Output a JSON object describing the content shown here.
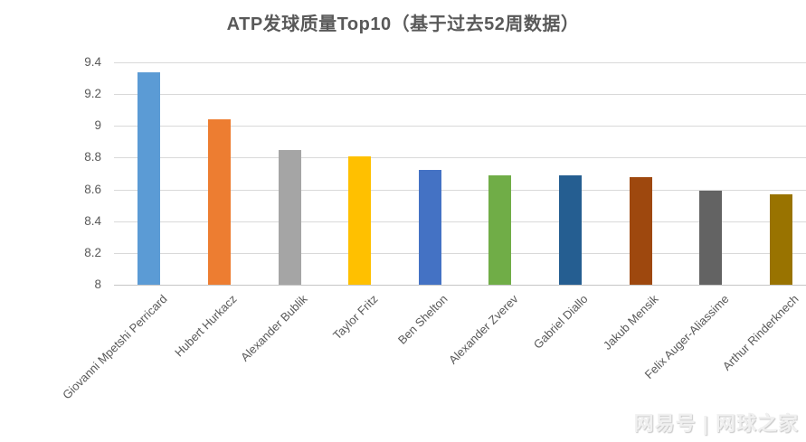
{
  "chart_data": {
    "type": "bar",
    "title": "ATP发球质量Top10（基于过去52周数据）",
    "categories": [
      "Giovanni Mpetshi Perricard",
      "Hubert Hurkacz",
      "Alexander Bublik",
      "Taylor Fritz",
      "Ben Shelton",
      "Alexander Zverev",
      "Gabriel Diallo",
      "Jakub Mensik",
      "Felix Auger-Aliassime",
      "Arthur Rinderknech"
    ],
    "values": [
      9.34,
      9.04,
      8.85,
      8.81,
      8.72,
      8.69,
      8.69,
      8.68,
      8.59,
      8.57
    ],
    "bar_colors": [
      "#5B9BD5",
      "#ED7D31",
      "#A5A5A5",
      "#FFC000",
      "#4472C4",
      "#70AD47",
      "#255E91",
      "#9E480E",
      "#636363",
      "#997300"
    ],
    "xlabel": "",
    "ylabel": "",
    "ylim": [
      8,
      9.4
    ],
    "ytick_labels": [
      "9.4",
      "9.2",
      "9",
      "8.8",
      "8.6",
      "8.4",
      "8.2",
      "8"
    ],
    "ytick_values": [
      9.4,
      9.2,
      9,
      8.8,
      8.6,
      8.4,
      8.2,
      8
    ],
    "grid": true,
    "legend_position": "none"
  },
  "watermark": {
    "text": "网易号 | 网球之家"
  },
  "colors": {
    "background": "#ffffff",
    "title_text": "#595959",
    "axis_text": "#595959",
    "gridline": "#d9d9d9",
    "axis_line": "#c6c6c6",
    "watermark_text": "#f0f0f0"
  }
}
